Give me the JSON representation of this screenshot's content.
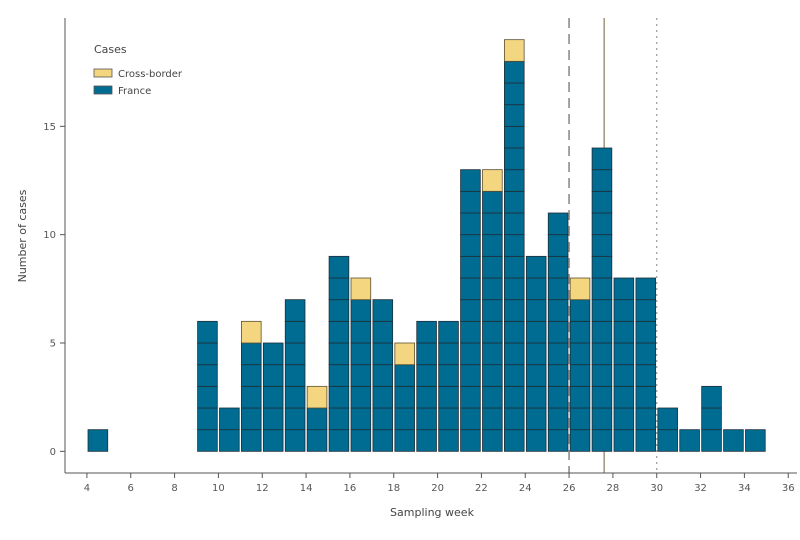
{
  "chart_data": {
    "type": "bar",
    "stacked": true,
    "xlabel": "Sampling week",
    "ylabel": "Number of cases",
    "xlim": [
      3,
      36.4
    ],
    "ylim": [
      -1,
      20
    ],
    "x_ticks": [
      4,
      6,
      8,
      10,
      12,
      14,
      16,
      18,
      20,
      22,
      24,
      26,
      28,
      30,
      32,
      34,
      36
    ],
    "y_ticks": [
      0,
      5,
      10,
      15
    ],
    "legend": {
      "title": "Cases",
      "position": "top-left",
      "entries": [
        {
          "label": "Cross-border",
          "color": "#f3d67f"
        },
        {
          "label": "France",
          "color": "#006c91"
        }
      ]
    },
    "series": [
      {
        "name": "France",
        "color": "#006c91",
        "x": [
          4.5,
          9.5,
          10.5,
          11.5,
          12.5,
          13.5,
          14.5,
          15.5,
          16.5,
          17.5,
          18.5,
          19.5,
          20.5,
          21.5,
          22.5,
          23.5,
          24.5,
          25.5,
          26.5,
          27.5,
          28.5,
          29.5,
          30.5,
          31.5,
          32.5,
          33.5,
          34.5
        ],
        "values": [
          1,
          6,
          2,
          5,
          5,
          7,
          2,
          9,
          7,
          7,
          4,
          6,
          6,
          13,
          12,
          18,
          9,
          11,
          7,
          14,
          8,
          8,
          2,
          1,
          3,
          1,
          1
        ]
      },
      {
        "name": "Cross-border",
        "color": "#f3d67f",
        "x": [
          4.5,
          9.5,
          10.5,
          11.5,
          12.5,
          13.5,
          14.5,
          15.5,
          16.5,
          17.5,
          18.5,
          19.5,
          20.5,
          21.5,
          22.5,
          23.5,
          24.5,
          25.5,
          26.5,
          27.5,
          28.5,
          29.5,
          30.5,
          31.5,
          32.5,
          33.5,
          34.5
        ],
        "values": [
          0,
          0,
          0,
          1,
          0,
          0,
          1,
          0,
          1,
          0,
          1,
          0,
          0,
          0,
          1,
          1,
          0,
          0,
          1,
          0,
          0,
          0,
          0,
          0,
          0,
          0,
          0
        ]
      }
    ],
    "reference_lines": [
      {
        "x": 26,
        "style": "dashed",
        "color": "#999999"
      },
      {
        "x": 27.6,
        "style": "solid",
        "color": "#8a7c5a"
      },
      {
        "x": 30,
        "style": "dotted",
        "color": "#999999"
      }
    ]
  }
}
